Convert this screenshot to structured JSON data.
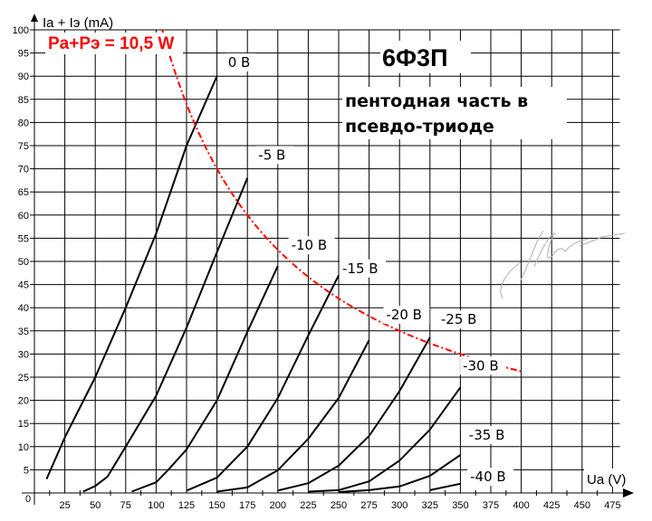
{
  "chart_data": {
    "type": "line",
    "title": "6Ф3П",
    "subtitle_lines": [
      "пентодная часть в",
      "псевдо-триоде"
    ],
    "xlabel": "Ua (V)",
    "ylabel": "Ia + Iэ (mA)",
    "xlim": [
      0,
      475
    ],
    "ylim": [
      0,
      100
    ],
    "x_ticks": [
      25,
      50,
      75,
      100,
      125,
      150,
      175,
      200,
      225,
      250,
      275,
      300,
      325,
      350,
      375,
      400,
      425,
      450,
      475
    ],
    "y_ticks": [
      5,
      10,
      15,
      20,
      25,
      30,
      35,
      40,
      45,
      50,
      55,
      60,
      65,
      70,
      75,
      80,
      85,
      90,
      95,
      100
    ],
    "origin_label": "0",
    "grid": true,
    "series": [
      {
        "name": "0 B",
        "x": [
          10,
          25,
          50,
          75,
          100,
          125,
          150
        ],
        "y": [
          3,
          12,
          25,
          40,
          56,
          75,
          90
        ]
      },
      {
        "name": "-5 B",
        "x": [
          40,
          50,
          60,
          75,
          100,
          125,
          150,
          175
        ],
        "y": [
          0.3,
          1.5,
          3.5,
          10,
          21,
          35.7,
          52,
          68
        ]
      },
      {
        "name": "-10 B",
        "x": [
          80,
          100,
          110,
          125,
          150,
          175,
          200
        ],
        "y": [
          0.3,
          2.3,
          5,
          9.4,
          20,
          34.8,
          49
        ]
      },
      {
        "name": "-15 B",
        "x": [
          125,
          150,
          160,
          175,
          200,
          225,
          250
        ],
        "y": [
          0.5,
          3.3,
          6,
          10,
          20.5,
          34,
          47
        ]
      },
      {
        "name": "-20 B",
        "x": [
          150,
          175,
          200,
          225,
          250,
          275
        ],
        "y": [
          0.3,
          1.2,
          4.9,
          11.7,
          20.5,
          33
        ]
      },
      {
        "name": "-25 B",
        "x": [
          200,
          225,
          250,
          275,
          300,
          325
        ],
        "y": [
          0.5,
          2.1,
          5.9,
          12.3,
          22,
          33.6
        ]
      },
      {
        "name": "-30 B",
        "x": [
          225,
          250,
          275,
          300,
          325,
          350
        ],
        "y": [
          0.3,
          0.6,
          2.5,
          7,
          13.7,
          22.8
        ]
      },
      {
        "name": "-35 B",
        "x": [
          250,
          275,
          300,
          325,
          350
        ],
        "y": [
          0.2,
          0.6,
          1.4,
          3.7,
          8.2
        ]
      },
      {
        "name": "-40 B",
        "x": [
          325,
          350
        ],
        "y": [
          0.6,
          2
        ]
      }
    ],
    "power_limit": {
      "label": "Pa+Pэ = 10,5 W",
      "watts": 10.5,
      "x_range": [
        105,
        400
      ],
      "color": "#ff0000",
      "style": "dash-dot"
    },
    "curve_labels": [
      {
        "text": "0 B",
        "x": 159,
        "y": 92
      },
      {
        "text": "-5 B",
        "x": 184,
        "y": 72
      },
      {
        "text": "-10 B",
        "x": 211,
        "y": 52.5
      },
      {
        "text": "-15 B",
        "x": 253,
        "y": 47.5
      },
      {
        "text": "-20 B",
        "x": 289,
        "y": 37.5
      },
      {
        "text": "-25 B",
        "x": 334,
        "y": 36.5
      },
      {
        "text": "-30 B",
        "x": 352,
        "y": 26.5
      },
      {
        "text": "-35 B",
        "x": 357,
        "y": 11.5
      },
      {
        "text": "-40 B",
        "x": 358,
        "y": 2.5
      }
    ],
    "annotations": [
      "signature (decorative, light gray)"
    ]
  },
  "colors": {
    "grid": "#000000",
    "curves": "#000000",
    "power_curve": "#ff0000",
    "signature": "#b0b0b0",
    "background": "#ffffff"
  }
}
